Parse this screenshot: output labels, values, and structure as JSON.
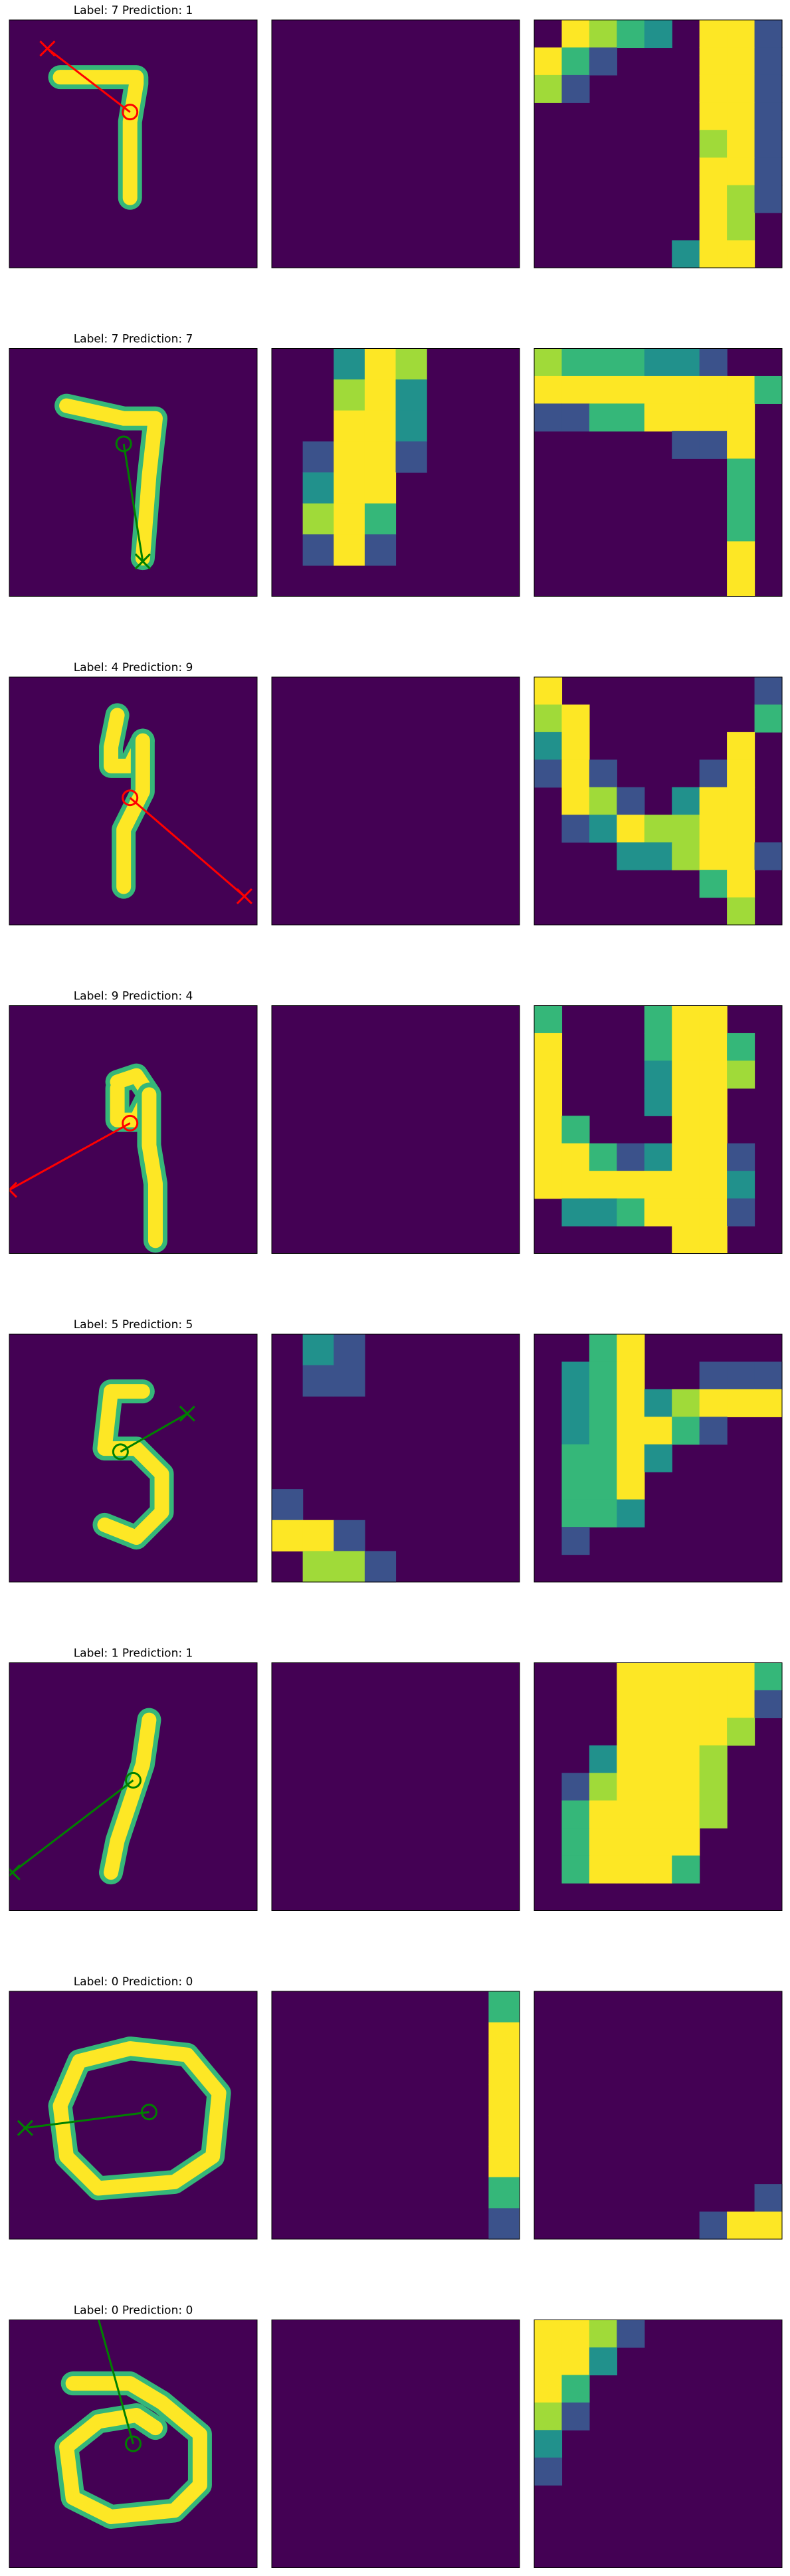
{
  "colors": {
    "background": "#440154",
    "frame": "#000000",
    "correct": "#008000",
    "incorrect": "#ff0000",
    "viridis": [
      "#440154",
      "#3b528b",
      "#21918c",
      "#35b779",
      "#a0da39",
      "#fde725"
    ]
  },
  "chart_data": [
    {
      "type": "heatmap",
      "title": "Label: 7 Prediction: 1",
      "label": 7,
      "prediction": 1,
      "correct": false,
      "glimpse_center": [
        19,
        14.5
      ],
      "glimpse_end": [
        6,
        4.5
      ],
      "vline_x": 1,
      "patch2_rows": [],
      "patch3_rows": [
        "0.1,5,4,3,2,0,5,5,1",
        "5,3,1,0,0,0,5,5,1",
        "4,1,0,0,0,0,5,5,1",
        "0,0,0,0,0,0,5,5,1",
        "0,0,0,0,0,0,4,5,1",
        "0,0,0,0,0,0,5,5,1",
        "0,0,0,0,0,0,5,4,1",
        "0,0,0,0,0,0,5,4,0",
        "0,0,0,0,0,2,5,5,0"
      ]
    },
    {
      "type": "heatmap",
      "title": "Label: 7 Prediction: 7",
      "label": 7,
      "prediction": 7,
      "correct": true,
      "glimpse_center": [
        18,
        15
      ],
      "glimpse_end": [
        21,
        33.5
      ],
      "vline_x": 0,
      "patch2_rows": [
        "0,0,2,5,4,0,0,0",
        "0,0,4,5,2,0,0,0",
        "0,0,5,5,2,0,0,0",
        "0,1,5,5,1,0,0,0",
        "0,2,5,5,0,0,0,0",
        "0,4,5,3,0,0,0,0",
        "0,1,5,1,0,0,0,0",
        "0,0,0,0,0,0,0,0"
      ],
      "patch3_rows": [
        "4,3,3,3,2,2,1,0,0",
        "5,5,5,5,5,5,5,5,3",
        "1,1,3,3,5,5,5,5,0",
        "0,0,0,0,0,1,1,5,0",
        "0,0,0,0,0,0,0,3,0",
        "0,0,0,0,0,0,0,3,0",
        "0,0,0,0,0,0,0,3,0",
        "0,0,0,0,0,0,0,5,0",
        "0,0,0,0,0,0,0,5,0"
      ]
    },
    {
      "type": "heatmap",
      "title": "Label: 4 Prediction: 9",
      "label": 4,
      "prediction": 9,
      "correct": false,
      "glimpse_center": [
        19,
        19
      ],
      "glimpse_end": [
        37,
        34.5
      ],
      "vline_x": 0,
      "patch2_rows": [],
      "patch3_rows": [
        "5,0,0,0,0,0,0,0,1",
        "4,5,0,0,0,0,0,0,3",
        "2,5,0,0,0,0,0,5,0",
        "1,5,1,0,0,0,1,5,0",
        "0,5,4,1,0,2,5,5,0",
        "0,1,2,5,4,4,5,5,0",
        "0,0,0,2,2,4,5,5,1",
        "0,0,0,0,0,0,3,5,0",
        "0,0,0,0,0,0,0,4,0"
      ]
    },
    {
      "type": "heatmap",
      "title": "Label: 9 Prediction: 4",
      "label": 9,
      "prediction": 4,
      "correct": false,
      "glimpse_center": [
        19,
        18.5
      ],
      "glimpse_end": [
        0,
        29
      ],
      "vline_x": 0,
      "patch2_rows": [],
      "patch3_rows": [
        "3,0,0,0,3,5,5,0,0",
        "5,0,0,0,3,5,5,3,0",
        "5,0,0,0,2,5,5,4,0",
        "5,0,0,0,2,5,5,0,0",
        "5,3,0,0,0,5,5,0,0",
        "5,5,3,1,2,5,5,1,0",
        "5,5,5,5,5,5,5,2,0",
        "0,2,2,3,5,5,5,1,0",
        "0,0,0,0,0,5,5,0,0"
      ]
    },
    {
      "type": "heatmap",
      "title": "Label: 5 Prediction: 5",
      "label": 5,
      "prediction": 5,
      "correct": true,
      "glimpse_center": [
        17.5,
        18.5
      ],
      "glimpse_end": [
        28,
        12.5
      ],
      "vline_x": 0,
      "patch2_rows": [
        "0,2,1,0,0,0,0,0",
        "0,1,1,0,0,0,0,0",
        "0,0,0,0,0,0,0,0",
        "0,0,0,0,0,0,0,0",
        "0,0,0,0,0,0,0,0",
        "1,0,0,0,0,0,0,0",
        "5,5,1,0,0,0,0,0",
        "0,4,4,1,0,0,0,0"
      ],
      "patch3_rows": [
        "0,0,3,5,0,0,0,0,0",
        "0,2,3,5,0,0,1,1,1",
        "0,2,3,5,2,4,5,5,5",
        "0,2,3,5,5,3,1,0,0",
        "0,3,3,5,2,0,0,0,0",
        "0,3,3,5,0,0,0,0,0",
        "0,3,3,2,0,0,0,0,0",
        "0,1,0,0,0,0,0,0,0",
        "0,0,0,0,0,0,0,0,0"
      ]
    },
    {
      "type": "heatmap",
      "title": "Label: 1 Prediction: 1",
      "label": 1,
      "prediction": 1,
      "correct": true,
      "glimpse_center": [
        19.5,
        18.5
      ],
      "glimpse_end": [
        0.5,
        33
      ],
      "vline_x": 1,
      "patch2_rows": [],
      "patch3_rows": [
        "0,0,0,5,5,5,5,5,3",
        "0,0,0,5,5,5,5,5,1",
        "0,0,0,5,5,5,5,4,0",
        "0,0,2,5,5,5,4,0,0",
        "0,1,4,5,5,5,4,0,0",
        "0,3,5,5,5,5,4,0,0",
        "0,3,5,5,5,5,0,0,0",
        "0,3,5,5,5,3,0,0,0",
        "0,0,0,0,0,0,0,0,0"
      ]
    },
    {
      "type": "heatmap",
      "title": "Label: 0 Prediction: 0",
      "label": 0,
      "prediction": 0,
      "correct": true,
      "glimpse_center": [
        22,
        19
      ],
      "glimpse_end": [
        2.5,
        21.5
      ],
      "vline_x": 0,
      "patch2_rows": [
        "0,0,0,0,0,0,0,3",
        "0,0,0,0,0,0,0,5",
        "0,0,0,0,0,0,0,5",
        "0,0,0,0,0,0,0,5",
        "0,0,0,0,0,0,0,5",
        "0,0,0,0,0,0,0,5",
        "0,0,0,0,0,0,0,3",
        "0,0,0,0,0,0,0,1"
      ],
      "patch3_rows": [
        "0,0,0,0,0,0,0,0,0",
        "0,0,0,0,0,0,0,0,0",
        "0,0,0,0,0,0,0,0,0",
        "0,0,0,0,0,0,0,0,0",
        "0,0,0,0,0,0,0,0,0",
        "0,0,0,0,0,0,0,0,0",
        "0,0,0,0,0,0,0,0,0",
        "0,0,0,0,0,0,0,0,1",
        "0,0,0,0,0,0,1,5,5"
      ]
    },
    {
      "type": "heatmap",
      "title": "Label: 0 Prediction: 0",
      "label": 0,
      "prediction": 0,
      "correct": true,
      "glimpse_center": [
        19.5,
        19.5
      ],
      "glimpse_end": [
        13.5,
        -2
      ],
      "vline_x": 0,
      "patch2_rows": [],
      "patch3_rows": [
        "5,5,4,1,0,0,0,0,0",
        "5,5,2,0,0,0,0,0,0",
        "5,3,0,0,0,0,0,0,0",
        "4,1,0,0,0,0,0,0,0",
        "2,0,0,0,0,0,0,0,0",
        "1,0,0,0,0,0,0,0,0",
        "0,0,0,0,0,0,0,0,0",
        "0,0,0,0,0,0,0,0,0",
        "0,0,0,0,0,0,0,0,0"
      ]
    }
  ]
}
